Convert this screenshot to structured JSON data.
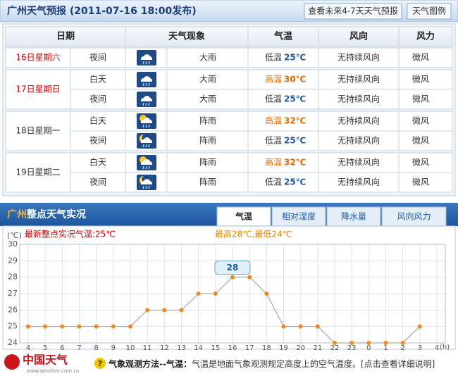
{
  "header": {
    "title": "广州天气预报 (2011-07-16 18:00发布)",
    "buttons": [
      "查看未来4-7天天气预报",
      "天气图例"
    ]
  },
  "table": {
    "columns": [
      "日期",
      "天气现象",
      "气温",
      "风向",
      "风力"
    ],
    "days": [
      {
        "date": "16日星期六",
        "color": "#cc0000",
        "periods": [
          {
            "time": "夜间",
            "weather": "大雨",
            "temp_label": "低温",
            "temp": "25℃",
            "wind_dir": "无持续风向",
            "wind_force": "微风"
          }
        ]
      },
      {
        "date": "17日星期日",
        "color": "#cc0000",
        "periods": [
          {
            "time": "白天",
            "weather": "大雨",
            "temp_label": "高温",
            "temp": "30℃",
            "wind_dir": "无持续风向",
            "wind_force": "微风"
          },
          {
            "time": "夜间",
            "weather": "大雨",
            "temp_label": "低温",
            "temp": "25℃",
            "wind_dir": "无持续风向",
            "wind_force": "微风"
          }
        ]
      },
      {
        "date": "18日星期一",
        "color": "#333333",
        "periods": [
          {
            "time": "白天",
            "weather": "阵雨",
            "temp_label": "高温",
            "temp": "32℃",
            "wind_dir": "无持续风向",
            "wind_force": "微风"
          },
          {
            "time": "夜间",
            "weather": "阵雨",
            "temp_label": "低温",
            "temp": "25℃",
            "wind_dir": "无持续风向",
            "wind_force": "微风"
          }
        ]
      },
      {
        "date": "19日星期二",
        "color": "#333333",
        "periods": [
          {
            "time": "白天",
            "weather": "阵雨",
            "temp_label": "高温",
            "temp": "32℃",
            "wind_dir": "无持续风向",
            "wind_force": "微风"
          },
          {
            "time": "夜间",
            "weather": "阵雨",
            "temp_label": "低温",
            "temp": "25℃",
            "wind_dir": "无持续风向",
            "wind_force": "微风"
          }
        ]
      }
    ]
  },
  "live": {
    "city": "广州",
    "title": "整点天气实况",
    "tabs": [
      "气温",
      "相对湿度",
      "降水量",
      "风向风力"
    ]
  },
  "chart_data": {
    "type": "line",
    "latest": "最新整点实况气温:25℃",
    "range": "最高28℃,最低24℃",
    "ylabel": "(℃)",
    "xlabel": "(h)",
    "categories": [
      "4",
      "5",
      "6",
      "7",
      "8",
      "9",
      "10",
      "11",
      "12",
      "13",
      "14",
      "15",
      "16",
      "17",
      "18",
      "19",
      "20",
      "21",
      "22",
      "23",
      "0",
      "1",
      "2",
      "3",
      "4"
    ],
    "values": [
      25,
      25,
      25,
      25,
      25,
      25,
      25,
      26,
      26,
      26,
      27,
      27,
      28,
      28,
      27,
      25,
      25,
      25,
      24,
      24,
      24,
      24,
      24,
      25,
      null
    ],
    "color": "#f08a1c",
    "ylim": [
      24,
      30
    ],
    "yticks": [
      24,
      25,
      26,
      27,
      28,
      29,
      30
    ],
    "grid": true
  },
  "footer": {
    "logo": "中国天气",
    "site": "www.weather.com.cn",
    "method_title": "气象观测方法--气温：",
    "method_text": "气温是地面气象观测规定高度上的空气温度。",
    "link": "[点击查看详细说明]"
  }
}
